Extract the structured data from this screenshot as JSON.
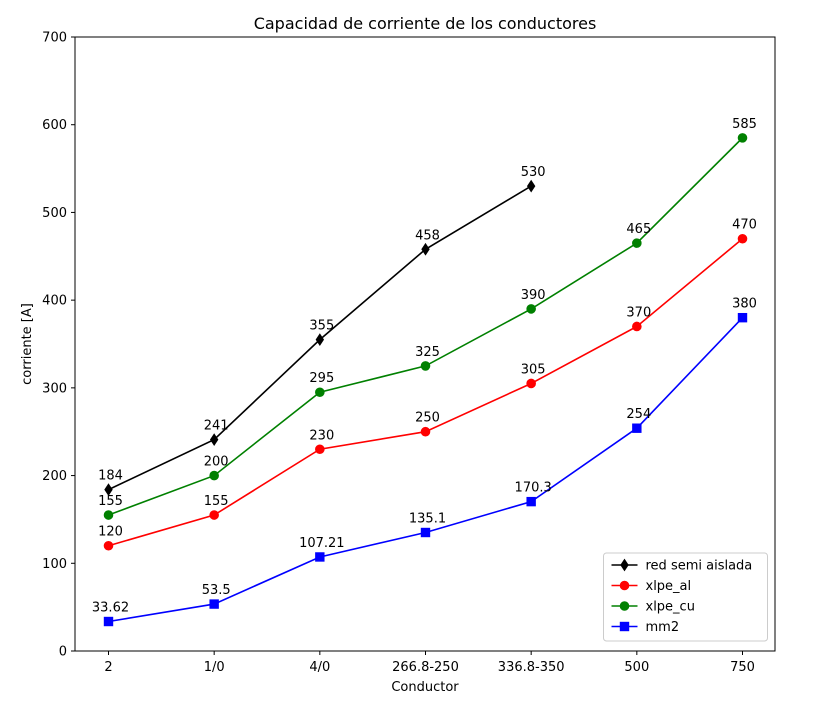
{
  "chart_data": {
    "type": "line",
    "title": "Capacidad de corriente de los conductores",
    "xlabel": "Conductor",
    "ylabel": "corriente [A]",
    "categories": [
      "2",
      "1/0",
      "4/0",
      "266.8-250",
      "336.8-350",
      "500",
      "750"
    ],
    "ylim": [
      0,
      700
    ],
    "yticks": [
      0,
      100,
      200,
      300,
      400,
      500,
      600,
      700
    ],
    "grid": false,
    "legend_position": "lower-right",
    "series": [
      {
        "name": "red semi aislada",
        "color": "#000000",
        "marker": "diamond",
        "values": [
          184,
          241,
          355,
          458,
          530,
          null,
          null
        ],
        "labels": [
          "184",
          "241",
          "355",
          "458",
          "530",
          null,
          null
        ]
      },
      {
        "name": "xlpe_al",
        "color": "#ff0000",
        "marker": "circle",
        "values": [
          120,
          155,
          230,
          250,
          305,
          370,
          470
        ],
        "labels": [
          "120",
          "155",
          "230",
          "250",
          "305",
          "370",
          "470"
        ]
      },
      {
        "name": "xlpe_cu",
        "color": "#008000",
        "marker": "circle",
        "values": [
          155,
          200,
          295,
          325,
          390,
          465,
          585
        ],
        "labels": [
          "155",
          "200",
          "295",
          "325",
          "390",
          "465",
          "585"
        ]
      },
      {
        "name": "mm2",
        "color": "#0000ff",
        "marker": "square",
        "values": [
          33.62,
          53.5,
          107.21,
          135.1,
          170.3,
          254,
          380
        ],
        "labels": [
          "33.62",
          "53.5",
          "107.21",
          "135.1",
          "170.3",
          "254",
          "380"
        ]
      }
    ]
  }
}
